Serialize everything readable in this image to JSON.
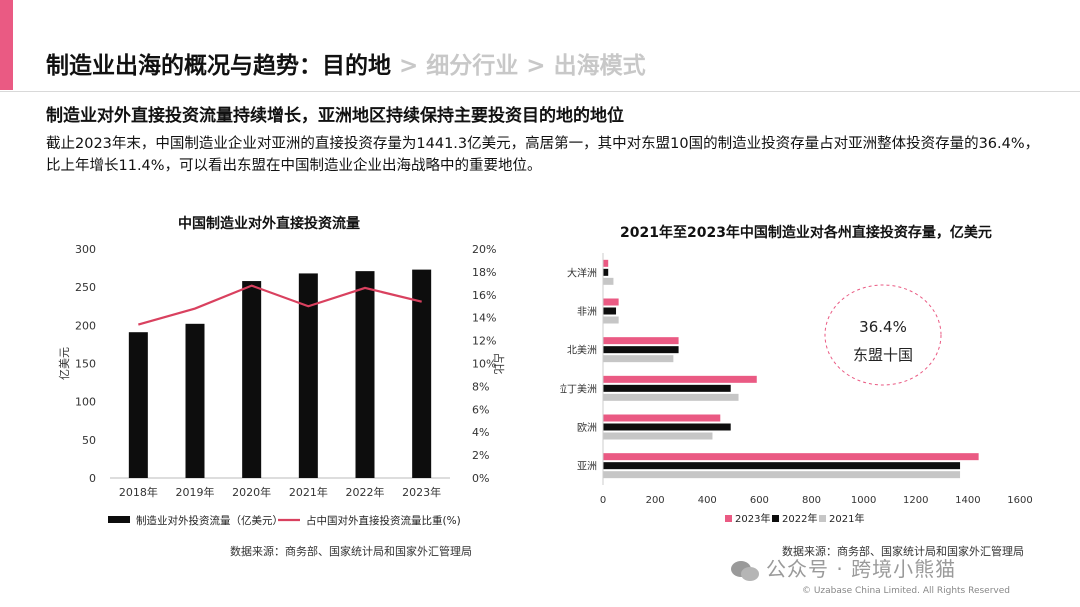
{
  "header": {
    "active": "制造业出海的概况与趋势：目的地",
    "crumbs": " > 细分行业 > 出海模式"
  },
  "subtitle": "制造业对外直接投资流量持续增长，亚洲地区持续保持主要投资目的地的地位",
  "paragraph": "截止2023年末，中国制造业企业对亚洲的直接投资存量为1441.3亿美元，高居第一，其中对东盟10国的制造业投资存量占对亚洲整体投资存量的36.4%，比上年增长11.4%，可以看出东盟在中国制造业企业出海战略中的重要地位。",
  "colors": {
    "accent": "#ea5a83",
    "black": "#0d0d0d",
    "gray": "#c6c6c6",
    "line": "#d9415f"
  },
  "chart_data": [
    {
      "type": "bar",
      "title": "中国制造业对外直接投资流量",
      "categories": [
        "2018年",
        "2019年",
        "2020年",
        "2021年",
        "2022年",
        "2023年"
      ],
      "series": [
        {
          "name": "制造业对外投资流量（亿美元）",
          "kind": "bar",
          "axis": "left",
          "values": [
            191,
            202,
            258,
            268,
            271,
            273
          ]
        },
        {
          "name": "占中国对外直接投资流量比重(%)",
          "kind": "line",
          "axis": "right",
          "values": [
            13.4,
            14.8,
            16.8,
            15.0,
            16.6,
            15.4
          ]
        }
      ],
      "ylabel": "亿美元",
      "ylabel_right": "占比",
      "ylim": [
        0,
        300
      ],
      "yticks": [
        "0",
        "50",
        "100",
        "150",
        "200",
        "250",
        "300"
      ],
      "ylim_right": [
        0,
        20
      ],
      "yticks_right": [
        "0%",
        "2%",
        "4%",
        "6%",
        "8%",
        "10%",
        "12%",
        "14%",
        "16%",
        "18%",
        "20%"
      ],
      "legend": "bottom",
      "source": "数据来源：商务部、国家统计局和国家外汇管理局"
    },
    {
      "type": "bar",
      "orientation": "horizontal",
      "title": "2021年至2023年中国制造业对各州直接投资存量，亿美元",
      "categories": [
        "大洋洲",
        "非洲",
        "北美洲",
        "拉丁美洲",
        "欧洲",
        "亚洲"
      ],
      "series": [
        {
          "name": "2023年",
          "values": [
            20,
            60,
            290,
            590,
            450,
            1441.3
          ]
        },
        {
          "name": "2022年",
          "values": [
            20,
            50,
            290,
            490,
            490,
            1370
          ]
        },
        {
          "name": "2021年",
          "values": [
            40,
            60,
            270,
            520,
            420,
            1370
          ]
        }
      ],
      "xlim": [
        0,
        1600
      ],
      "xticks": [
        "0",
        "200",
        "400",
        "600",
        "800",
        "1000",
        "1200",
        "1400",
        "1600"
      ],
      "legend": "bottom",
      "annotation": {
        "value": "36.4%",
        "label": "东盟十国"
      },
      "source": "数据来源：商务部、国家统计局和国家外汇管理局"
    }
  ],
  "watermark": "公众号 · 跨境小熊猫",
  "copyright": "© Uzabase China Limited. All Rights Reserved"
}
